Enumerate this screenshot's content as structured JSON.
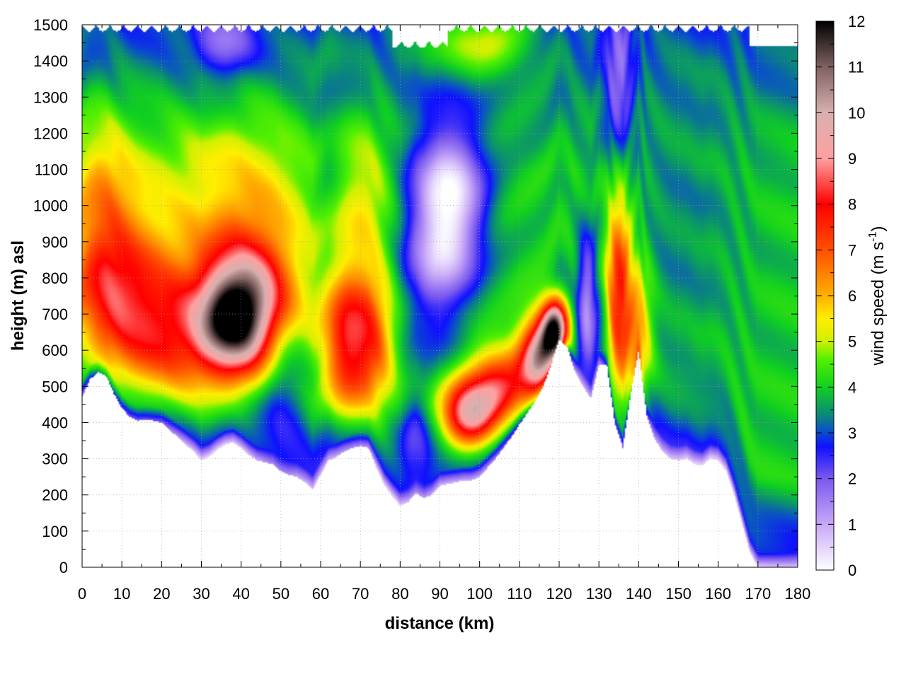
{
  "chart_data": {
    "type": "heatmap",
    "xlabel": "distance (km)",
    "ylabel": "height (m) asl",
    "colorbar_label": "wind speed (m s-1)",
    "colorbar_label_parts": [
      "wind speed (m s",
      "-1",
      ")"
    ],
    "xlim": [
      0,
      180
    ],
    "ylim": [
      0,
      1500
    ],
    "clim": [
      0,
      12
    ],
    "x_ticks": [
      "0",
      "10",
      "20",
      "30",
      "40",
      "50",
      "60",
      "70",
      "80",
      "90",
      "100",
      "110",
      "120",
      "130",
      "140",
      "150",
      "160",
      "170",
      "180"
    ],
    "y_ticks": [
      "0",
      "100",
      "200",
      "300",
      "400",
      "500",
      "600",
      "700",
      "800",
      "900",
      "1000",
      "1100",
      "1200",
      "1300",
      "1400",
      "1500"
    ],
    "colorbar_ticks": [
      "0",
      "1",
      "2",
      "3",
      "4",
      "5",
      "6",
      "7",
      "8",
      "9",
      "10",
      "11",
      "12"
    ],
    "grid": true,
    "colormap": [
      {
        "value": 0,
        "color": "#ffffff"
      },
      {
        "value": 1,
        "color": "#c8a8f8"
      },
      {
        "value": 2,
        "color": "#7a58f0"
      },
      {
        "value": 2.7,
        "color": "#1010ff"
      },
      {
        "value": 3,
        "color": "#0a4ad0"
      },
      {
        "value": 3.4,
        "color": "#0a8a78"
      },
      {
        "value": 4,
        "color": "#10d020"
      },
      {
        "value": 4.6,
        "color": "#50f000"
      },
      {
        "value": 5,
        "color": "#d0f000"
      },
      {
        "value": 5.5,
        "color": "#ffee00"
      },
      {
        "value": 6,
        "color": "#ffb000"
      },
      {
        "value": 7,
        "color": "#ff5000"
      },
      {
        "value": 8,
        "color": "#ff0000"
      },
      {
        "value": 9,
        "color": "#ffa0a0"
      },
      {
        "value": 10,
        "color": "#d8b0b0"
      },
      {
        "value": 11,
        "color": "#806060"
      },
      {
        "value": 12,
        "color": "#000000"
      }
    ],
    "terrain": [
      [
        0,
        470
      ],
      [
        2,
        520
      ],
      [
        4,
        540
      ],
      [
        6,
        530
      ],
      [
        8,
        480
      ],
      [
        10,
        440
      ],
      [
        12,
        415
      ],
      [
        14,
        405
      ],
      [
        16,
        408
      ],
      [
        18,
        405
      ],
      [
        20,
        400
      ],
      [
        22,
        380
      ],
      [
        24,
        360
      ],
      [
        26,
        340
      ],
      [
        28,
        320
      ],
      [
        30,
        295
      ],
      [
        32,
        305
      ],
      [
        34,
        325
      ],
      [
        36,
        340
      ],
      [
        38,
        345
      ],
      [
        40,
        330
      ],
      [
        42,
        310
      ],
      [
        44,
        295
      ],
      [
        46,
        290
      ],
      [
        48,
        285
      ],
      [
        50,
        265
      ],
      [
        52,
        255
      ],
      [
        54,
        250
      ],
      [
        56,
        235
      ],
      [
        58,
        215
      ],
      [
        60,
        255
      ],
      [
        62,
        295
      ],
      [
        64,
        305
      ],
      [
        66,
        320
      ],
      [
        68,
        330
      ],
      [
        70,
        335
      ],
      [
        72,
        330
      ],
      [
        74,
        275
      ],
      [
        76,
        225
      ],
      [
        78,
        195
      ],
      [
        80,
        170
      ],
      [
        82,
        180
      ],
      [
        84,
        205
      ],
      [
        86,
        190
      ],
      [
        88,
        200
      ],
      [
        90,
        225
      ],
      [
        92,
        230
      ],
      [
        94,
        235
      ],
      [
        96,
        240
      ],
      [
        98,
        240
      ],
      [
        100,
        250
      ],
      [
        102,
        275
      ],
      [
        104,
        300
      ],
      [
        106,
        330
      ],
      [
        108,
        360
      ],
      [
        110,
        395
      ],
      [
        112,
        425
      ],
      [
        114,
        460
      ],
      [
        116,
        500
      ],
      [
        118,
        560
      ],
      [
        120,
        630
      ],
      [
        122,
        610
      ],
      [
        124,
        540
      ],
      [
        126,
        500
      ],
      [
        128,
        465
      ],
      [
        130,
        560
      ],
      [
        132,
        560
      ],
      [
        134,
        400
      ],
      [
        136,
        330
      ],
      [
        138,
        480
      ],
      [
        140,
        600
      ],
      [
        142,
        420
      ],
      [
        144,
        355
      ],
      [
        146,
        320
      ],
      [
        148,
        300
      ],
      [
        150,
        295
      ],
      [
        152,
        300
      ],
      [
        154,
        285
      ],
      [
        156,
        280
      ],
      [
        158,
        300
      ],
      [
        160,
        295
      ],
      [
        162,
        265
      ],
      [
        164,
        200
      ],
      [
        166,
        120
      ],
      [
        168,
        40
      ],
      [
        170,
        0
      ],
      [
        180,
        0
      ]
    ],
    "wind_features": [
      {
        "x": 7,
        "z": 760,
        "speed": 7.6,
        "sx": 8,
        "sz": 150
      },
      {
        "x": 22,
        "z": 650,
        "speed": 7.4,
        "sx": 9,
        "sz": 140
      },
      {
        "x": 37,
        "z": 680,
        "speed": 9.8,
        "sx": 6,
        "sz": 110
      },
      {
        "x": 44,
        "z": 720,
        "speed": 8.0,
        "sx": 7,
        "sz": 120
      },
      {
        "x": 42,
        "z": 950,
        "speed": 6.0,
        "sx": 11,
        "sz": 200
      },
      {
        "x": 5,
        "z": 1050,
        "speed": 5.6,
        "sx": 6,
        "sz": 150
      },
      {
        "x": 20,
        "z": 1000,
        "speed": 4.8,
        "sx": 12,
        "sz": 160
      },
      {
        "x": 66,
        "z": 620,
        "speed": 7.7,
        "sx": 4,
        "sz": 140
      },
      {
        "x": 73,
        "z": 620,
        "speed": 7.0,
        "sx": 4,
        "sz": 140
      },
      {
        "x": 71,
        "z": 1000,
        "speed": 5.3,
        "sx": 5,
        "sz": 160
      },
      {
        "x": 97,
        "z": 420,
        "speed": 8.9,
        "sx": 5,
        "sz": 70
      },
      {
        "x": 105,
        "z": 500,
        "speed": 7.8,
        "sx": 6,
        "sz": 80
      },
      {
        "x": 115,
        "z": 580,
        "speed": 9.6,
        "sx": 3.5,
        "sz": 80
      },
      {
        "x": 119,
        "z": 660,
        "speed": 10.8,
        "sx": 2.5,
        "sz": 60
      },
      {
        "x": 135,
        "z": 760,
        "speed": 8.0,
        "sx": 2.2,
        "sz": 200
      },
      {
        "x": 140,
        "z": 650,
        "speed": 6.2,
        "sx": 2.5,
        "sz": 150
      },
      {
        "x": 94,
        "z": 1010,
        "speed": 1.0,
        "sx": 6,
        "sz": 170
      },
      {
        "x": 88,
        "z": 900,
        "speed": 1.8,
        "sx": 6,
        "sz": 210
      },
      {
        "x": 84,
        "z": 330,
        "speed": 2.2,
        "sx": 3,
        "sz": 100
      },
      {
        "x": 127,
        "z": 720,
        "speed": 1.2,
        "sx": 1.8,
        "sz": 140
      },
      {
        "x": 135,
        "z": 1350,
        "speed": 1.5,
        "sx": 2.5,
        "sz": 150
      },
      {
        "x": 36,
        "z": 1440,
        "speed": 1.4,
        "sx": 5,
        "sz": 60
      },
      {
        "x": 50,
        "z": 480,
        "speed": 2.4,
        "sx": 4,
        "sz": 150
      },
      {
        "x": 62,
        "z": 1300,
        "speed": 3.4,
        "sx": 2.5,
        "sz": 300
      },
      {
        "x": 100,
        "z": 1450,
        "speed": 5.0,
        "sx": 10,
        "sz": 80
      },
      {
        "x": 150,
        "z": 950,
        "speed": 3.4,
        "sx": 12,
        "sz": 300
      }
    ]
  }
}
